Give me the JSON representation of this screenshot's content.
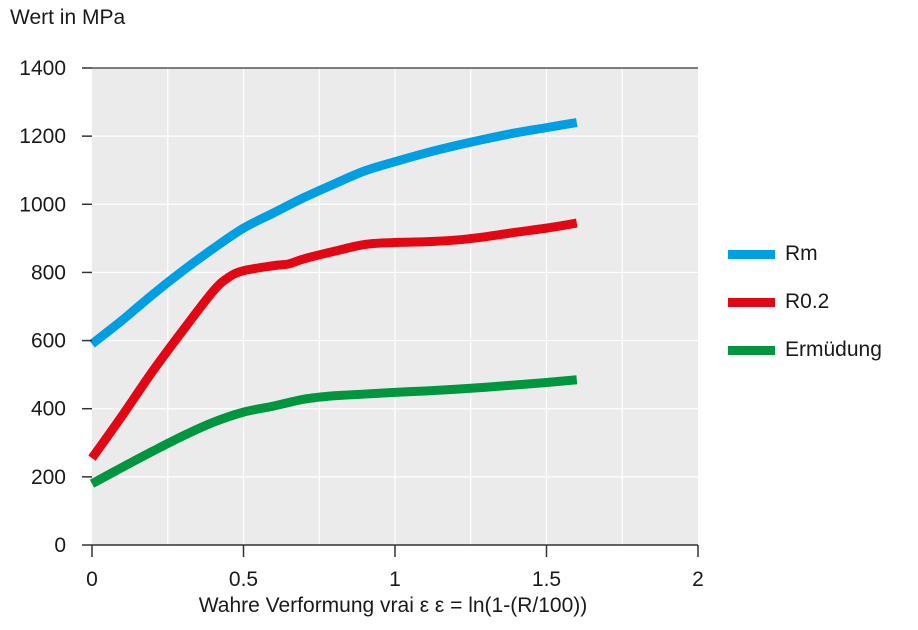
{
  "chart_data": {
    "type": "line",
    "title": "",
    "ylabel": "Wert in MPa",
    "xlabel": "Wahre Verformung vrai ε  ε = ln(1-(R/100))",
    "xlim": [
      0,
      2
    ],
    "ylim": [
      0,
      1400
    ],
    "xticks": [
      0,
      0.5,
      1,
      1.5,
      2
    ],
    "xtick_labels": [
      "0",
      "0.5",
      "1",
      "1.5",
      "2"
    ],
    "yticks": [
      0,
      200,
      400,
      600,
      800,
      1000,
      1200,
      1400
    ],
    "ytick_labels": [
      "0",
      "200",
      "400",
      "600",
      "800",
      "1000",
      "1200",
      "1400"
    ],
    "grid": true,
    "legend_position": "right",
    "series": [
      {
        "name": "Rm",
        "color": "#009fe3",
        "points": [
          [
            0,
            590
          ],
          [
            0.1,
            660
          ],
          [
            0.2,
            735
          ],
          [
            0.3,
            805
          ],
          [
            0.4,
            870
          ],
          [
            0.5,
            930
          ],
          [
            0.6,
            975
          ],
          [
            0.7,
            1020
          ],
          [
            0.8,
            1060
          ],
          [
            0.9,
            1098
          ],
          [
            1.0,
            1125
          ],
          [
            1.1,
            1150
          ],
          [
            1.2,
            1172
          ],
          [
            1.3,
            1192
          ],
          [
            1.4,
            1210
          ],
          [
            1.5,
            1225
          ],
          [
            1.6,
            1240
          ]
        ]
      },
      {
        "name": "R0.2",
        "color": "#e30613",
        "points": [
          [
            0,
            255
          ],
          [
            0.1,
            380
          ],
          [
            0.2,
            510
          ],
          [
            0.3,
            630
          ],
          [
            0.4,
            745
          ],
          [
            0.45,
            785
          ],
          [
            0.5,
            805
          ],
          [
            0.6,
            820
          ],
          [
            0.65,
            825
          ],
          [
            0.7,
            840
          ],
          [
            0.8,
            862
          ],
          [
            0.9,
            882
          ],
          [
            1.0,
            888
          ],
          [
            1.1,
            890
          ],
          [
            1.2,
            895
          ],
          [
            1.3,
            905
          ],
          [
            1.4,
            918
          ],
          [
            1.5,
            930
          ],
          [
            1.6,
            945
          ]
        ]
      },
      {
        "name": "Ermüdung",
        "color": "#009640",
        "points": [
          [
            0,
            180
          ],
          [
            0.1,
            228
          ],
          [
            0.2,
            275
          ],
          [
            0.3,
            320
          ],
          [
            0.4,
            360
          ],
          [
            0.5,
            390
          ],
          [
            0.6,
            408
          ],
          [
            0.7,
            428
          ],
          [
            0.8,
            438
          ],
          [
            0.9,
            443
          ],
          [
            1.0,
            448
          ],
          [
            1.1,
            452
          ],
          [
            1.2,
            457
          ],
          [
            1.3,
            463
          ],
          [
            1.4,
            470
          ],
          [
            1.5,
            477
          ],
          [
            1.6,
            485
          ]
        ]
      }
    ]
  }
}
